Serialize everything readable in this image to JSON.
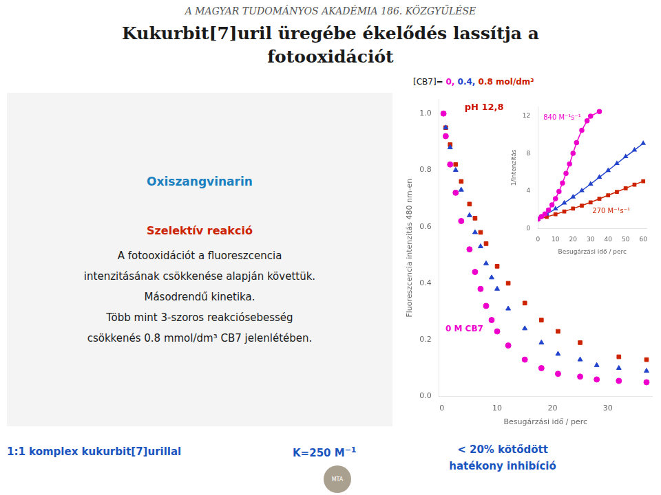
{
  "chart_data": [
    {
      "type": "scatter",
      "subtitle": "A MAGYAR TUDOMÁNYOS AKADÉMIA 186. KÖZGYŰLÉSE",
      "title": [
        "Kukurbit[7]uril üregébe ékelődés lassítja a",
        "fotooxidációt"
      ],
      "x_label": "Besugárzási idő / perc",
      "y_label": "Fluoreszcencia intenzitás 480 nm-en",
      "series": [
        {
          "color": "#ee00cc",
          "marker": "circle",
          "x": [
            0.3,
            0.7,
            1.5,
            2.5,
            3.5,
            5,
            6,
            7,
            8,
            9,
            10,
            12,
            15,
            18,
            21,
            25,
            28,
            32,
            37
          ],
          "values": [
            1.0,
            0.92,
            0.82,
            0.72,
            0.62,
            0.52,
            0.44,
            0.38,
            0.32,
            0.27,
            0.23,
            0.18,
            0.13,
            0.1,
            0.08,
            0.07,
            0.06,
            0.055,
            0.05
          ]
        },
        {
          "color": "#2244cc",
          "marker": "triangle",
          "x": [
            0.3,
            0.7,
            1.5,
            2.5,
            3.5,
            5,
            6,
            7,
            8,
            9,
            10,
            12,
            15,
            18,
            21,
            25,
            28,
            32,
            37
          ],
          "values": [
            1.0,
            0.95,
            0.88,
            0.8,
            0.73,
            0.64,
            0.58,
            0.53,
            0.47,
            0.42,
            0.38,
            0.31,
            0.24,
            0.19,
            0.15,
            0.13,
            0.11,
            0.1,
            0.09
          ]
        },
        {
          "color": "#cc2200",
          "marker": "square",
          "x": [
            0.3,
            0.7,
            1.5,
            2.5,
            3.5,
            5,
            6,
            7,
            8,
            10,
            12,
            15,
            18,
            21,
            25,
            32,
            37
          ],
          "values": [
            1.0,
            0.95,
            0.89,
            0.82,
            0.76,
            0.68,
            0.63,
            0.58,
            0.54,
            0.46,
            0.4,
            0.33,
            0.27,
            0.23,
            0.19,
            0.14,
            0.13
          ]
        }
      ],
      "xlim": [
        -0.5,
        38
      ],
      "xticks": [
        0,
        10,
        20,
        30
      ],
      "ylim": [
        0.0,
        1.05
      ],
      "yticks": [
        {
          "value": 0.0,
          "label": "0.0"
        },
        0.2,
        0.4,
        0.6,
        0.8,
        {
          "value": 1.0,
          "label": "1.0"
        }
      ],
      "grid": false,
      "annotations": [
        {
          "text": "pH 12,8",
          "color": "#cc1100"
        },
        {
          "text": "0 M CB7",
          "color": "#ee00cc"
        },
        {
          "text": "[CB7]= ",
          "color": "#111111"
        },
        {
          "text": "0,",
          "color": "#ee00cc"
        },
        {
          "text": " 0.4,",
          "color": "#2244cc"
        },
        {
          "text": " 0.8 mol/dm³",
          "color": "#cc2200"
        },
        {
          "text": "Oxiszangvinarin",
          "color": "#1a80bf"
        },
        {
          "text": "Szelektív reakció",
          "color": "#cc2200"
        },
        {
          "text": "A fotooxidációt a fluoreszcencia",
          "color": "#1a1a1a"
        },
        {
          "text": "intenzitásának csökkenése alapján követtük.",
          "color": "#1a1a1a"
        },
        {
          "text": "Másodrendű kinetika.",
          "color": "#1a1a1a"
        },
        {
          "text": "Több mint 3-szoros reakciósebesség",
          "color": "#1a1a1a"
        },
        {
          "text": "csökkenés 0.8 mmol/dm³ CB7 jelenlétében.",
          "color": "#1a1a1a"
        },
        {
          "text": "1:1 komplex kukurbit[7]urillal",
          "color": "#1a55bf"
        },
        {
          "text": "K=250 M",
          "color": "#1a55bf"
        },
        {
          "text": "−1",
          "color": "#1a55bf"
        },
        {
          "text": "< 20% kötődött",
          "color": "#1a55bf"
        },
        {
          "text": "hatékony inhibíció",
          "color": "#1a55bf"
        },
        {
          "text": "MTA",
          "color": "#ffffff"
        }
      ]
    },
    {
      "type": "line",
      "x_label": "Besugárzási idő / perc",
      "y_label": "1/Intenzitás",
      "series": [
        {
          "color": "#ee00cc",
          "marker": "circle",
          "line_style": "solid",
          "x": [
            0,
            2,
            4,
            6,
            8,
            10,
            12,
            14,
            16,
            18,
            20,
            22,
            25,
            28,
            30,
            35
          ],
          "values": [
            1.0,
            1.28,
            1.56,
            1.98,
            2.52,
            3.18,
            3.96,
            4.86,
            5.88,
            6.9,
            8.04,
            9.18,
            10.5,
            11.5,
            12.0,
            12.5
          ]
        },
        {
          "color": "#2244cc",
          "marker": "triangle",
          "line_style": "solid",
          "x": [
            0,
            5,
            10,
            15,
            20,
            25,
            30,
            35,
            40,
            45,
            50,
            55,
            60
          ],
          "values": [
            1.0,
            1.55,
            2.1,
            2.72,
            3.38,
            4.05,
            4.75,
            5.48,
            6.2,
            6.95,
            7.68,
            8.38,
            9.1
          ]
        },
        {
          "color": "#cc2200",
          "marker": "square",
          "line_style": "solid",
          "x": [
            0,
            5,
            10,
            15,
            20,
            25,
            30,
            35,
            40,
            45,
            50,
            55,
            60
          ],
          "values": [
            1.0,
            1.25,
            1.52,
            1.82,
            2.13,
            2.45,
            2.8,
            3.17,
            3.55,
            3.92,
            4.3,
            4.68,
            5.05
          ]
        }
      ],
      "xlim": [
        0,
        62
      ],
      "xticks": [
        0,
        10,
        20,
        30,
        40,
        50,
        60
      ],
      "ylim": [
        0,
        13
      ],
      "yticks": [
        0,
        4,
        8,
        12
      ],
      "grid": false,
      "annotations": [
        {
          "text": "840 M⁻¹s⁻¹",
          "color": "#ee00cc"
        },
        {
          "text": "270 M⁻¹s⁻¹",
          "color": "#cc2200"
        }
      ]
    }
  ]
}
